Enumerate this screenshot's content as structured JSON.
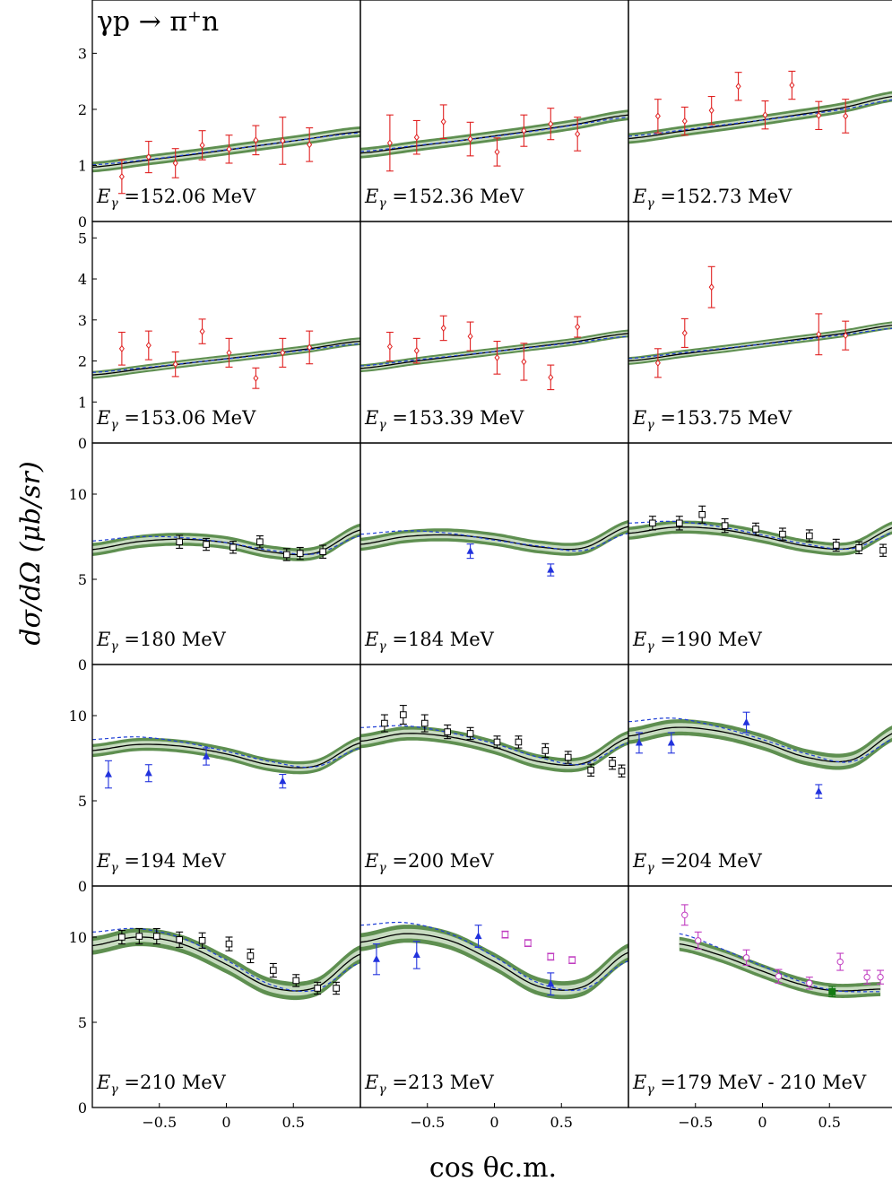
{
  "figure": {
    "reaction": "γp → π⁺n",
    "ylabel": "dσ/dΩ (μb/sr)",
    "xlabel": "cos θc.m.",
    "x_ticks": [
      "−0.5",
      "0",
      "0.5"
    ],
    "energy_prefix": "E",
    "energy_sub": "γ",
    "colors": {
      "band_outer": "#5e8f50",
      "band_inner": "#c7dbc0",
      "central_curve": "#000000",
      "dashed_curve": "#1f3fd6",
      "series_red": "#e02020",
      "series_blue": "#2233dd",
      "series_black": "#000000",
      "series_magenta": "#c03cc0",
      "series_green": "#137a13"
    }
  },
  "chart_data": [
    {
      "type": "scatter",
      "energy": " =152.06 MeV",
      "xlim": [
        -1,
        1
      ],
      "ylim": [
        0,
        3.95
      ],
      "yticks": [
        0,
        1,
        2,
        3
      ],
      "curve": {
        "y": [
          0.97,
          1.09,
          1.21,
          1.34,
          1.47,
          1.6
        ],
        "w": 0.05
      },
      "dashed": [
        1.01,
        1.1,
        1.22,
        1.34,
        1.47,
        1.58
      ],
      "series": [
        {
          "name": "red",
          "marker": "diamond",
          "x": [
            -0.78,
            -0.58,
            -0.38,
            -0.18,
            0.02,
            0.22,
            0.42,
            0.62
          ],
          "y": [
            0.8,
            1.15,
            1.04,
            1.36,
            1.29,
            1.45,
            1.44,
            1.37
          ],
          "err": [
            0.3,
            0.28,
            0.26,
            0.26,
            0.25,
            0.26,
            0.42,
            0.3
          ]
        }
      ]
    },
    {
      "type": "scatter",
      "energy": " =152.36 MeV",
      "xlim": [
        -1,
        1
      ],
      "ylim": [
        0,
        3.95
      ],
      "yticks": [],
      "curve": {
        "y": [
          1.22,
          1.34,
          1.46,
          1.59,
          1.73,
          1.9
        ],
        "w": 0.05
      },
      "dashed": [
        1.25,
        1.35,
        1.46,
        1.58,
        1.72,
        1.86
      ],
      "series": [
        {
          "name": "red",
          "marker": "diamond",
          "x": [
            -0.78,
            -0.58,
            -0.38,
            -0.18,
            0.02,
            0.22,
            0.42,
            0.62
          ],
          "y": [
            1.4,
            1.5,
            1.78,
            1.47,
            1.24,
            1.62,
            1.74,
            1.56
          ],
          "err": [
            0.5,
            0.3,
            0.3,
            0.3,
            0.25,
            0.28,
            0.28,
            0.3
          ]
        }
      ]
    },
    {
      "type": "scatter",
      "energy": " =152.73 MeV",
      "xlim": [
        -1,
        1
      ],
      "ylim": [
        0,
        3.95
      ],
      "yticks": [],
      "curve": {
        "y": [
          1.48,
          1.61,
          1.74,
          1.88,
          2.03,
          2.24
        ],
        "w": 0.05
      },
      "dashed": [
        1.52,
        1.63,
        1.75,
        1.87,
        2.0,
        2.18
      ],
      "series": [
        {
          "name": "red",
          "marker": "diamond",
          "x": [
            -0.78,
            -0.58,
            -0.38,
            -0.18,
            0.02,
            0.22,
            0.42,
            0.62
          ],
          "y": [
            1.88,
            1.79,
            1.98,
            2.41,
            1.9,
            2.43,
            1.89,
            1.88
          ],
          "err": [
            0.3,
            0.25,
            0.25,
            0.25,
            0.25,
            0.25,
            0.25,
            0.3
          ]
        }
      ]
    },
    {
      "type": "scatter",
      "energy": " =153.06 MeV",
      "xlim": [
        -1,
        1
      ],
      "ylim": [
        0,
        5.4
      ],
      "yticks": [
        0,
        1,
        2,
        3,
        4,
        5
      ],
      "curve": {
        "y": [
          1.66,
          1.82,
          1.98,
          2.13,
          2.29,
          2.48
        ],
        "w": 0.05
      },
      "dashed": [
        1.72,
        1.84,
        1.98,
        2.12,
        2.27,
        2.42
      ],
      "series": [
        {
          "name": "red",
          "marker": "diamond",
          "x": [
            -0.78,
            -0.58,
            -0.38,
            -0.18,
            0.02,
            0.22,
            0.42,
            0.62
          ],
          "y": [
            2.3,
            2.38,
            1.92,
            2.72,
            2.2,
            1.58,
            2.2,
            2.33
          ],
          "err": [
            0.4,
            0.35,
            0.3,
            0.3,
            0.35,
            0.25,
            0.35,
            0.4
          ]
        }
      ]
    },
    {
      "type": "scatter",
      "energy": " =153.39 MeV",
      "xlim": [
        -1,
        1
      ],
      "ylim": [
        0,
        5.4
      ],
      "yticks": [],
      "curve": {
        "y": [
          1.82,
          1.99,
          2.15,
          2.31,
          2.47,
          2.67
        ],
        "w": 0.05
      },
      "dashed": [
        1.88,
        2.02,
        2.16,
        2.3,
        2.45,
        2.6
      ],
      "series": [
        {
          "name": "red",
          "marker": "diamond",
          "x": [
            -0.78,
            -0.58,
            -0.38,
            -0.18,
            0.02,
            0.22,
            0.42,
            0.62
          ],
          "y": [
            2.35,
            2.25,
            2.8,
            2.6,
            2.08,
            1.98,
            1.6,
            2.83
          ],
          "err": [
            0.35,
            0.3,
            0.3,
            0.35,
            0.4,
            0.45,
            0.3,
            0.25
          ]
        }
      ]
    },
    {
      "type": "scatter",
      "energy": " =153.75 MeV",
      "xlim": [
        -1,
        1
      ],
      "ylim": [
        0,
        5.4
      ],
      "yticks": [],
      "curve": {
        "y": [
          2.0,
          2.17,
          2.33,
          2.5,
          2.67,
          2.88
        ],
        "w": 0.05
      },
      "dashed": [
        2.06,
        2.2,
        2.34,
        2.48,
        2.64,
        2.8
      ],
      "series": [
        {
          "name": "red",
          "marker": "diamond",
          "x": [
            -0.78,
            -0.58,
            -0.38,
            0.42,
            0.62
          ],
          "y": [
            1.95,
            2.68,
            3.8,
            2.65,
            2.62
          ],
          "err": [
            0.35,
            0.35,
            0.5,
            0.5,
            0.35
          ]
        }
      ]
    },
    {
      "type": "scatter",
      "energy": " =180 MeV",
      "xlim": [
        -1,
        1
      ],
      "ylim": [
        0,
        13
      ],
      "yticks": [
        0,
        5,
        10
      ],
      "curve": {
        "y": [
          6.75,
          7.2,
          7.35,
          7.15,
          6.6,
          6.55,
          7.9
        ],
        "w": 0.2
      },
      "dashed": [
        7.25,
        7.5,
        7.45,
        7.15,
        6.7,
        6.5,
        7.55
      ],
      "series": [
        {
          "name": "black",
          "marker": "square",
          "x": [
            -0.35,
            -0.15,
            0.05,
            0.25,
            0.45,
            0.55,
            0.72
          ],
          "y": [
            7.2,
            7.05,
            6.88,
            7.2,
            6.45,
            6.52,
            6.62
          ],
          "err": [
            0.38,
            0.35,
            0.35,
            0.35,
            0.35,
            0.35,
            0.38
          ]
        }
      ]
    },
    {
      "type": "scatter",
      "energy": " =184 MeV",
      "xlim": [
        -1,
        1
      ],
      "ylim": [
        0,
        13
      ],
      "yticks": [],
      "curve": {
        "y": [
          7.05,
          7.5,
          7.6,
          7.35,
          6.9,
          6.85,
          8.1
        ],
        "w": 0.2
      },
      "dashed": [
        7.65,
        7.85,
        7.7,
        7.3,
        6.95,
        6.7,
        7.7
      ],
      "series": [
        {
          "name": "blue",
          "marker": "triangle",
          "x": [
            -0.18,
            0.42
          ],
          "y": [
            6.65,
            5.55
          ],
          "err": [
            0.42,
            0.35
          ]
        }
      ]
    },
    {
      "type": "scatter",
      "energy": " =190 MeV",
      "xlim": [
        -1,
        1
      ],
      "ylim": [
        0,
        13
      ],
      "yticks": [],
      "curve": {
        "y": [
          7.7,
          8.05,
          7.95,
          7.5,
          6.95,
          6.85,
          8.1
        ],
        "w": 0.2
      },
      "dashed": [
        8.3,
        8.4,
        8.1,
        7.6,
        7.05,
        6.8,
        7.8
      ],
      "series": [
        {
          "name": "black",
          "marker": "square",
          "x": [
            -0.82,
            -0.62,
            -0.45,
            -0.28,
            -0.05,
            0.15,
            0.35,
            0.55,
            0.72,
            0.9
          ],
          "y": [
            8.3,
            8.3,
            8.8,
            8.15,
            7.95,
            7.65,
            7.55,
            7.0,
            6.85,
            6.7
          ],
          "err": [
            0.4,
            0.4,
            0.5,
            0.4,
            0.35,
            0.35,
            0.35,
            0.35,
            0.35,
            0.35
          ]
        }
      ]
    },
    {
      "type": "scatter",
      "energy": " =194 MeV",
      "xlim": [
        -1,
        1
      ],
      "ylim": [
        0,
        13
      ],
      "yticks": [
        0,
        5,
        10
      ],
      "curve": {
        "y": [
          7.95,
          8.3,
          8.2,
          7.75,
          7.1,
          7.05,
          8.4
        ],
        "w": 0.2
      },
      "dashed": [
        8.6,
        8.75,
        8.45,
        7.9,
        7.3,
        7.0,
        8.1
      ],
      "series": [
        {
          "name": "blue",
          "marker": "triangle",
          "x": [
            -0.88,
            -0.58,
            -0.15,
            0.42
          ],
          "y": [
            6.55,
            6.62,
            7.6,
            6.15
          ],
          "err": [
            0.8,
            0.5,
            0.5,
            0.4
          ]
        }
      ]
    },
    {
      "type": "scatter",
      "energy": " =200 MeV",
      "xlim": [
        -1,
        1
      ],
      "ylim": [
        0,
        13
      ],
      "yticks": [],
      "curve": {
        "y": [
          8.5,
          8.95,
          8.75,
          8.15,
          7.3,
          7.2,
          8.7
        ],
        "w": 0.22
      },
      "dashed": [
        9.3,
        9.4,
        9.0,
        8.35,
        7.55,
        7.15,
        8.4
      ],
      "series": [
        {
          "name": "black",
          "marker": "square",
          "x": [
            -0.82,
            -0.68,
            -0.52,
            -0.35,
            -0.18,
            0.02,
            0.18,
            0.38,
            0.55,
            0.72,
            0.88,
            0.95
          ],
          "y": [
            9.55,
            10.05,
            9.55,
            9.05,
            8.95,
            8.45,
            8.45,
            7.95,
            7.55,
            6.8,
            7.2,
            6.75
          ],
          "err": [
            0.5,
            0.55,
            0.5,
            0.4,
            0.35,
            0.35,
            0.35,
            0.4,
            0.35,
            0.35,
            0.35,
            0.35
          ]
        }
      ]
    },
    {
      "type": "scatter",
      "energy": " =204 MeV",
      "xlim": [
        -1,
        1
      ],
      "ylim": [
        0,
        13
      ],
      "yticks": [],
      "curve": {
        "y": [
          8.8,
          9.3,
          9.1,
          8.45,
          7.55,
          7.4,
          9.05
        ],
        "w": 0.25
      },
      "dashed": [
        9.65,
        9.85,
        9.35,
        8.6,
        7.75,
        7.3,
        8.7
      ],
      "series": [
        {
          "name": "blue",
          "marker": "triangle",
          "x": [
            -0.92,
            -0.68,
            -0.12,
            0.42
          ],
          "y": [
            8.4,
            8.4,
            9.6,
            5.55
          ],
          "err": [
            0.6,
            0.6,
            0.6,
            0.4
          ]
        }
      ]
    },
    {
      "type": "scatter",
      "energy": " =210 MeV",
      "xlim": [
        -1,
        1
      ],
      "ylim": [
        0,
        13
      ],
      "yticks": [
        0,
        5,
        10
      ],
      "curve": {
        "y": [
          9.5,
          10.0,
          9.6,
          8.4,
          7.05,
          7.05,
          9.0
        ],
        "w": 0.28
      },
      "dashed": [
        10.3,
        10.5,
        9.95,
        8.65,
        7.2,
        6.9,
        8.5
      ],
      "series": [
        {
          "name": "black",
          "marker": "square",
          "x": [
            -0.78,
            -0.65,
            -0.52,
            -0.35,
            -0.18,
            0.02,
            0.18,
            0.35,
            0.52,
            0.68,
            0.82
          ],
          "y": [
            10.0,
            10.05,
            10.05,
            9.85,
            9.8,
            9.6,
            8.9,
            8.05,
            7.45,
            7.0,
            7.0
          ],
          "err": [
            0.4,
            0.45,
            0.45,
            0.45,
            0.45,
            0.4,
            0.4,
            0.4,
            0.35,
            0.35,
            0.35
          ]
        }
      ]
    },
    {
      "type": "scatter",
      "energy": " =213 MeV",
      "xlim": [
        -1,
        1
      ],
      "ylim": [
        0,
        13
      ],
      "yticks": [],
      "curve": {
        "y": [
          9.7,
          10.2,
          9.8,
          8.55,
          7.1,
          7.1,
          9.1
        ],
        "w": 0.28
      },
      "dashed": [
        10.7,
        10.85,
        10.2,
        8.85,
        7.3,
        6.95,
        8.6
      ],
      "series": [
        {
          "name": "blue",
          "marker": "triangle",
          "x": [
            -0.88,
            -0.58,
            -0.12,
            0.42
          ],
          "y": [
            8.7,
            8.95,
            10.05,
            7.25
          ],
          "err": [
            0.9,
            0.8,
            0.65,
            0.65
          ]
        },
        {
          "name": "magenta",
          "marker": "square",
          "x": [
            0.08,
            0.25,
            0.42,
            0.58
          ],
          "y": [
            10.15,
            9.65,
            8.85,
            8.65
          ],
          "err": [
            0.2,
            0.2,
            0.2,
            0.2
          ]
        }
      ]
    },
    {
      "type": "scatter",
      "energy": " =179 MeV - 210 MeV",
      "xlim": [
        -1,
        1
      ],
      "ylim": [
        0,
        13
      ],
      "yticks": [],
      "curve": {
        "x": [
          -0.62,
          -0.3,
          0,
          0.3,
          0.55,
          0.88
        ],
        "y": [
          9.6,
          8.9,
          8.0,
          7.2,
          6.85,
          6.95
        ],
        "w": 0.22
      },
      "dashed": {
        "x": [
          -0.62,
          -0.3,
          0,
          0.3,
          0.55,
          0.88
        ],
        "y": [
          10.2,
          9.3,
          8.3,
          7.35,
          6.85,
          6.8
        ]
      },
      "series": [
        {
          "name": "magenta",
          "marker": "circle",
          "x": [
            -0.58,
            -0.48,
            -0.12,
            0.12,
            0.35,
            0.58,
            0.78,
            0.88
          ],
          "y": [
            11.3,
            9.8,
            8.8,
            7.7,
            7.3,
            8.55,
            7.65,
            7.65
          ],
          "err": [
            0.6,
            0.5,
            0.45,
            0.4,
            0.35,
            0.5,
            0.4,
            0.4
          ]
        },
        {
          "name": "green",
          "marker": "filled-square",
          "x": [
            0.52
          ],
          "y": [
            6.8
          ],
          "err": [
            0.3
          ]
        }
      ]
    }
  ]
}
